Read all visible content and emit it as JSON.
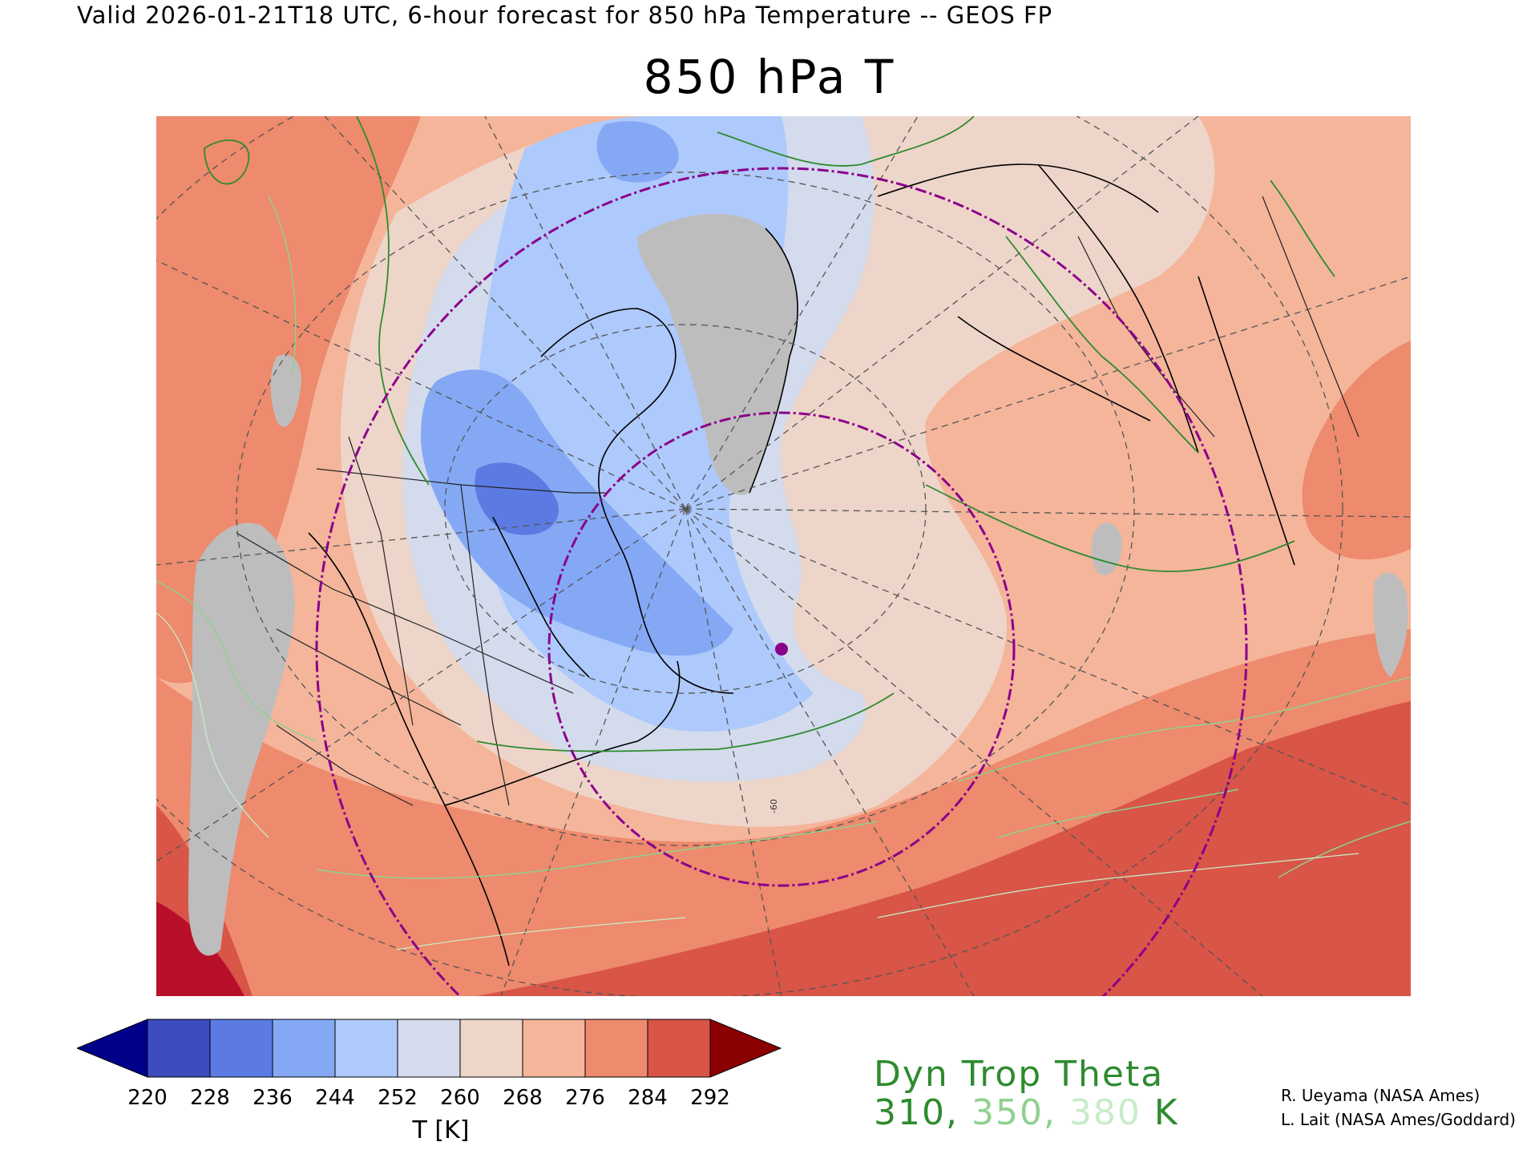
{
  "header": {
    "valid_line": "Valid 2026-01-21T18 UTC, 6-hour forecast for 850 hPa Temperature -- GEOS FP",
    "title": "850 hPa T"
  },
  "map": {
    "meridian_label": "-60",
    "marker_color": "#8b008b",
    "ring_color": "#8b008b",
    "land_gray": "#bdbdbd",
    "coast_color": "#000000",
    "graticule_color": "#555555"
  },
  "colorbar": {
    "ticks": [
      "220",
      "228",
      "236",
      "244",
      "252",
      "260",
      "268",
      "276",
      "284",
      "292"
    ],
    "low_extend_color": "#00008b",
    "high_extend_color": "#8b0000",
    "colors": [
      "#3c4dbf",
      "#5b7be3",
      "#84a8f4",
      "#aec9fb",
      "#d3dbec",
      "#eed5c9",
      "#f4b59b",
      "#ee8a6d",
      "#d85548"
    ],
    "label": "T [K]"
  },
  "tropopause": {
    "title": "Dyn Trop Theta",
    "values": [
      {
        "text": "310",
        "color": "#2e8b2e"
      },
      {
        "text": "350",
        "color": "#8fd18f"
      },
      {
        "text": "380",
        "color": "#c8ecc8"
      }
    ],
    "unit": "K",
    "separator": ", "
  },
  "credits": {
    "line1": "R. Ueyama (NASA Ames)",
    "line2": "L. Lait (NASA Ames/Goddard)"
  }
}
